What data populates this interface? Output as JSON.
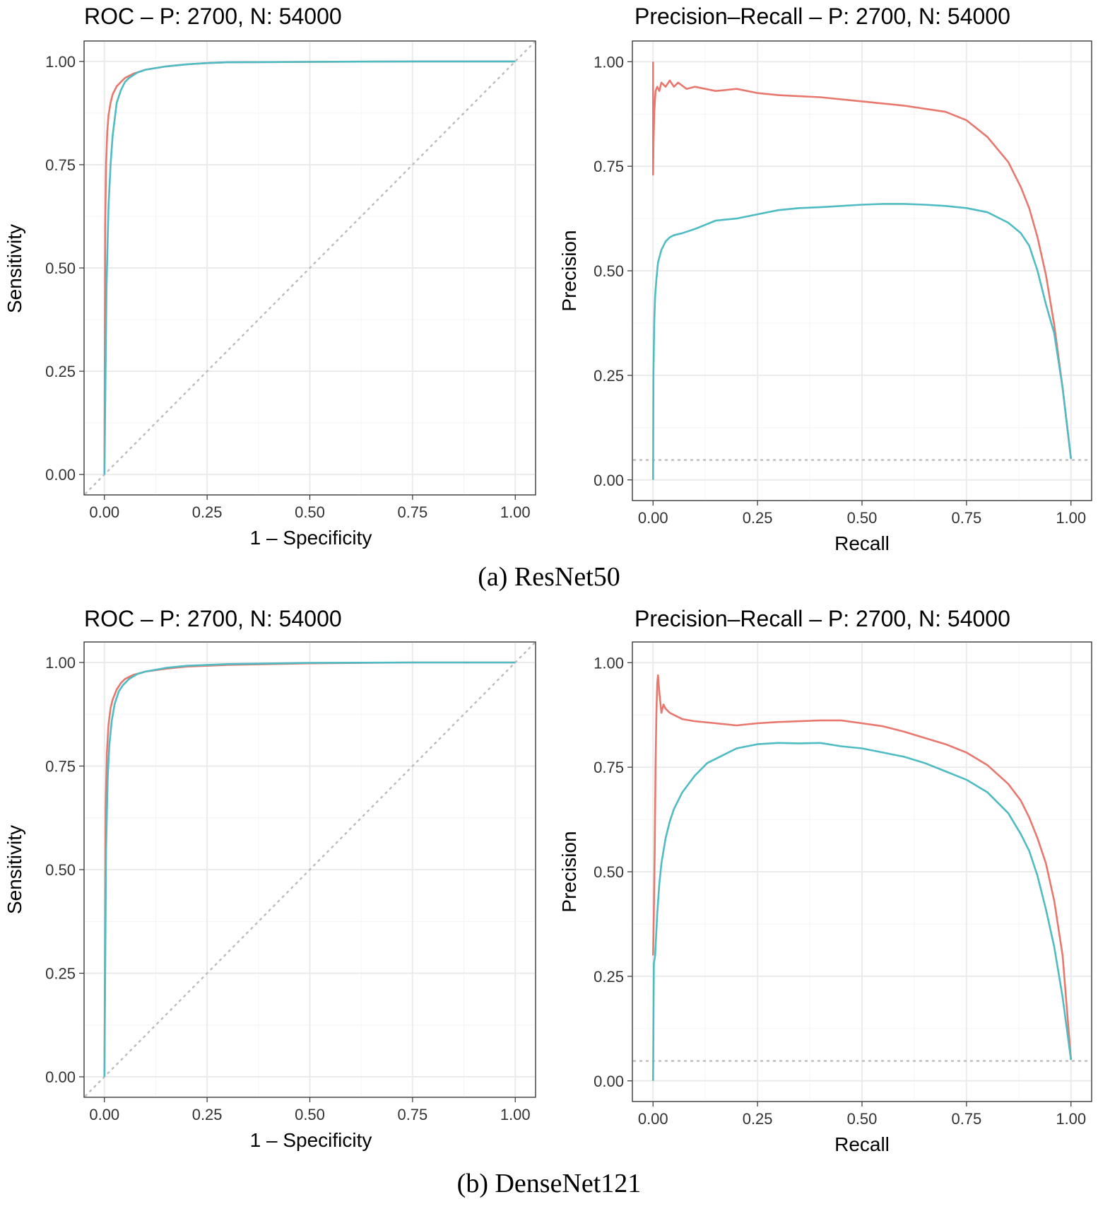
{
  "captions": [
    "(a) ResNet50",
    "(b) DenseNet121"
  ],
  "colors": {
    "series_red": "#E8776E",
    "series_teal": "#4FBBC2",
    "reference": "#BDBDBD"
  },
  "chart_data": [
    {
      "type": "line",
      "title": "ROC – P: 2700, N: 54000",
      "xlabel": "1 – Specificity",
      "ylabel": "Sensitivity",
      "xlim": [
        0,
        1
      ],
      "ylim": [
        0,
        1
      ],
      "xticks": [
        "0.00",
        "0.25",
        "0.50",
        "0.75",
        "1.00"
      ],
      "yticks": [
        "0.00",
        "0.25",
        "0.50",
        "0.75",
        "1.00"
      ],
      "reference": "diagonal",
      "grid": true,
      "series": [
        {
          "color": "#E8776E",
          "x": [
            0,
            0.002,
            0.004,
            0.007,
            0.01,
            0.015,
            0.02,
            0.03,
            0.04,
            0.05,
            0.07,
            0.1,
            0.15,
            0.2,
            0.25,
            0.3,
            0.5,
            0.75,
            1.0
          ],
          "y": [
            0,
            0.6,
            0.75,
            0.83,
            0.87,
            0.9,
            0.92,
            0.94,
            0.95,
            0.96,
            0.97,
            0.98,
            0.988,
            0.993,
            0.996,
            0.998,
            0.999,
            1.0,
            1.0
          ]
        },
        {
          "color": "#4FBBC2",
          "x": [
            0,
            0.005,
            0.01,
            0.015,
            0.02,
            0.025,
            0.03,
            0.04,
            0.05,
            0.06,
            0.08,
            0.1,
            0.15,
            0.2,
            0.25,
            0.3,
            0.5,
            0.75,
            1.0
          ],
          "y": [
            0,
            0.45,
            0.65,
            0.75,
            0.82,
            0.86,
            0.9,
            0.93,
            0.95,
            0.96,
            0.973,
            0.98,
            0.988,
            0.993,
            0.996,
            0.998,
            0.999,
            1.0,
            1.0
          ]
        }
      ]
    },
    {
      "type": "line",
      "title": "Precision–Recall – P: 2700, N: 54000",
      "xlabel": "Recall",
      "ylabel": "Precision",
      "xlim": [
        0,
        1
      ],
      "ylim": [
        0,
        1
      ],
      "xticks": [
        "0.00",
        "0.25",
        "0.50",
        "0.75",
        "1.00"
      ],
      "yticks": [
        "0.00",
        "0.25",
        "0.50",
        "0.75",
        "1.00"
      ],
      "reference": 0.0476,
      "grid": true,
      "series": [
        {
          "color": "#E8776E",
          "x": [
            0,
            0,
            0.001,
            0.003,
            0.006,
            0.01,
            0.015,
            0.02,
            0.03,
            0.04,
            0.05,
            0.06,
            0.08,
            0.1,
            0.15,
            0.2,
            0.25,
            0.3,
            0.4,
            0.5,
            0.6,
            0.7,
            0.75,
            0.8,
            0.85,
            0.88,
            0.9,
            0.92,
            0.94,
            0.96,
            0.98,
            1.0
          ],
          "y": [
            1.0,
            0.73,
            0.8,
            0.88,
            0.93,
            0.94,
            0.93,
            0.95,
            0.94,
            0.955,
            0.94,
            0.95,
            0.935,
            0.94,
            0.93,
            0.935,
            0.925,
            0.92,
            0.915,
            0.905,
            0.895,
            0.88,
            0.86,
            0.82,
            0.76,
            0.7,
            0.65,
            0.58,
            0.49,
            0.37,
            0.22,
            0.05
          ]
        },
        {
          "color": "#4FBBC2",
          "x": [
            0,
            0.001,
            0.003,
            0.005,
            0.008,
            0.012,
            0.02,
            0.03,
            0.04,
            0.05,
            0.07,
            0.1,
            0.15,
            0.2,
            0.25,
            0.3,
            0.35,
            0.4,
            0.45,
            0.5,
            0.55,
            0.6,
            0.65,
            0.7,
            0.75,
            0.8,
            0.85,
            0.88,
            0.9,
            0.92,
            0.94,
            0.96,
            0.98,
            1.0
          ],
          "y": [
            0,
            0.25,
            0.38,
            0.44,
            0.48,
            0.52,
            0.55,
            0.57,
            0.58,
            0.585,
            0.59,
            0.6,
            0.62,
            0.625,
            0.635,
            0.645,
            0.65,
            0.652,
            0.655,
            0.658,
            0.66,
            0.66,
            0.658,
            0.655,
            0.65,
            0.64,
            0.615,
            0.59,
            0.56,
            0.5,
            0.42,
            0.35,
            0.22,
            0.05
          ]
        }
      ]
    },
    {
      "type": "line",
      "title": "ROC – P: 2700, N: 54000",
      "xlabel": "1 – Specificity",
      "ylabel": "Sensitivity",
      "xlim": [
        0,
        1
      ],
      "ylim": [
        0,
        1
      ],
      "xticks": [
        "0.00",
        "0.25",
        "0.50",
        "0.75",
        "1.00"
      ],
      "yticks": [
        "0.00",
        "0.25",
        "0.50",
        "0.75",
        "1.00"
      ],
      "reference": "diagonal",
      "grid": true,
      "series": [
        {
          "color": "#E8776E",
          "x": [
            0,
            0.003,
            0.006,
            0.01,
            0.015,
            0.02,
            0.03,
            0.04,
            0.05,
            0.07,
            0.1,
            0.15,
            0.2,
            0.3,
            0.5,
            0.75,
            1.0
          ],
          "y": [
            0,
            0.65,
            0.78,
            0.85,
            0.89,
            0.91,
            0.935,
            0.95,
            0.96,
            0.97,
            0.978,
            0.985,
            0.99,
            0.994,
            0.998,
            1.0,
            1.0
          ]
        },
        {
          "color": "#4FBBC2",
          "x": [
            0,
            0.004,
            0.008,
            0.012,
            0.018,
            0.025,
            0.035,
            0.045,
            0.06,
            0.08,
            0.1,
            0.15,
            0.2,
            0.3,
            0.5,
            0.75,
            1.0
          ],
          "y": [
            0,
            0.55,
            0.72,
            0.8,
            0.86,
            0.9,
            0.93,
            0.945,
            0.96,
            0.972,
            0.978,
            0.987,
            0.992,
            0.996,
            0.999,
            1.0,
            1.0
          ]
        }
      ]
    },
    {
      "type": "line",
      "title": "Precision–Recall – P: 2700, N: 54000",
      "xlabel": "Recall",
      "ylabel": "Precision",
      "xlim": [
        0,
        1
      ],
      "ylim": [
        0,
        1
      ],
      "xticks": [
        "0.00",
        "0.25",
        "0.50",
        "0.75",
        "1.00"
      ],
      "yticks": [
        "0.00",
        "0.25",
        "0.50",
        "0.75",
        "1.00"
      ],
      "reference": 0.0476,
      "grid": true,
      "series": [
        {
          "color": "#E8776E",
          "x": [
            0,
            0.002,
            0.004,
            0.006,
            0.008,
            0.01,
            0.012,
            0.015,
            0.02,
            0.025,
            0.03,
            0.04,
            0.05,
            0.07,
            0.1,
            0.15,
            0.2,
            0.25,
            0.3,
            0.35,
            0.4,
            0.45,
            0.5,
            0.55,
            0.6,
            0.65,
            0.7,
            0.75,
            0.8,
            0.85,
            0.88,
            0.9,
            0.92,
            0.94,
            0.96,
            0.98,
            1.0
          ],
          "y": [
            0.3,
            0.4,
            0.55,
            0.75,
            0.88,
            0.95,
            0.97,
            0.93,
            0.88,
            0.9,
            0.89,
            0.88,
            0.875,
            0.865,
            0.86,
            0.855,
            0.85,
            0.855,
            0.858,
            0.86,
            0.862,
            0.862,
            0.855,
            0.848,
            0.835,
            0.82,
            0.805,
            0.785,
            0.755,
            0.71,
            0.67,
            0.63,
            0.58,
            0.52,
            0.43,
            0.3,
            0.05
          ]
        },
        {
          "color": "#4FBBC2",
          "x": [
            0,
            0.002,
            0.005,
            0.01,
            0.015,
            0.02,
            0.03,
            0.04,
            0.05,
            0.07,
            0.1,
            0.13,
            0.16,
            0.2,
            0.25,
            0.3,
            0.35,
            0.4,
            0.45,
            0.5,
            0.55,
            0.6,
            0.65,
            0.7,
            0.75,
            0.8,
            0.85,
            0.88,
            0.9,
            0.92,
            0.94,
            0.96,
            0.98,
            1.0
          ],
          "y": [
            0,
            0.28,
            0.3,
            0.4,
            0.47,
            0.52,
            0.58,
            0.62,
            0.65,
            0.69,
            0.73,
            0.76,
            0.775,
            0.795,
            0.805,
            0.808,
            0.807,
            0.808,
            0.8,
            0.795,
            0.785,
            0.775,
            0.76,
            0.74,
            0.72,
            0.69,
            0.64,
            0.59,
            0.55,
            0.49,
            0.41,
            0.32,
            0.2,
            0.05
          ]
        }
      ]
    }
  ]
}
